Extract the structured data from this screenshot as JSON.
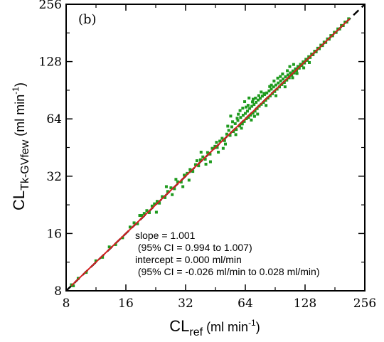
{
  "chart_data": {
    "type": "scatter",
    "panel_label": "(b)",
    "xlabel": {
      "main": "CL",
      "sub": "ref",
      "unit_pre": " (ml min",
      "sup": "-1",
      "unit_post": ")"
    },
    "ylabel": {
      "main": "CL",
      "sub": "Tk-GVfew",
      "unit_pre": "  (ml min",
      "sup": "-1",
      "unit_post": ")"
    },
    "axis_scale": "log2",
    "xlim": [
      8,
      256
    ],
    "ylim": [
      8,
      256
    ],
    "xticks": [
      8,
      16,
      32,
      64,
      128,
      256
    ],
    "yticks": [
      8,
      16,
      32,
      64,
      128,
      256
    ],
    "xtick_labels": [
      "8",
      "16",
      "32",
      "64",
      "128",
      "256"
    ],
    "ytick_labels": [
      "8",
      "16",
      "32",
      "64",
      "128",
      "256"
    ],
    "annotations": [
      "slope = 1.001",
      " (95% CI = 0.994 to 1.007)",
      "intercept = 0.000 ml/min",
      " (95% CI = -0.026 ml/min to 0.028 ml/min)"
    ],
    "identity_line": {
      "style": "dashed",
      "color": "#000000",
      "from": [
        8,
        8
      ],
      "to": [
        256,
        256
      ]
    },
    "fit_line": {
      "color": "#d42020",
      "slope": 1.001,
      "intercept": 0.0,
      "x_range": [
        8.5,
        215
      ]
    },
    "colors": {
      "points": "#1f9b1f",
      "fit": "#d42020",
      "identity": "#000000"
    },
    "series": [
      {
        "points": [
          [
            8.5,
            8.6
          ],
          [
            8.7,
            8.5
          ],
          [
            9.2,
            9.3
          ],
          [
            10.1,
            10.0
          ],
          [
            11.3,
            11.5
          ],
          [
            12.2,
            12.0
          ],
          [
            13.2,
            13.6
          ],
          [
            14.2,
            14.0
          ],
          [
            15.4,
            15.2
          ],
          [
            16.8,
            17.3
          ],
          [
            17.6,
            18.2
          ],
          [
            18.3,
            18.0
          ],
          [
            19.2,
            19.9
          ],
          [
            19.8,
            20.4
          ],
          [
            20.4,
            21.1
          ],
          [
            21.0,
            20.6
          ],
          [
            21.7,
            22.3
          ],
          [
            22.3,
            22.9
          ],
          [
            23.0,
            23.6
          ],
          [
            23.6,
            23.1
          ],
          [
            24.4,
            25.0
          ],
          [
            25.2,
            24.7
          ],
          [
            26.0,
            26.6
          ],
          [
            27.0,
            27.8
          ],
          [
            28.1,
            27.5
          ],
          [
            29.2,
            29.9
          ],
          [
            30.4,
            29.8
          ],
          [
            31.5,
            32.4
          ],
          [
            32.6,
            33.1
          ],
          [
            33.7,
            34.7
          ],
          [
            34.8,
            33.9
          ],
          [
            35.9,
            36.8
          ],
          [
            37.2,
            36.3
          ],
          [
            38.0,
            39.0
          ],
          [
            39.1,
            40.4
          ],
          [
            40.2,
            39.3
          ],
          [
            41.3,
            42.6
          ],
          [
            42.5,
            41.8
          ],
          [
            43.6,
            44.8
          ],
          [
            45.0,
            45.9
          ],
          [
            46.2,
            45.3
          ],
          [
            47.6,
            48.9
          ],
          [
            48.9,
            50.6
          ],
          [
            50.3,
            49.2
          ],
          [
            51.6,
            53.2
          ],
          [
            52.8,
            55.7
          ],
          [
            53.6,
            52.4
          ],
          [
            54.7,
            58.1
          ],
          [
            55.8,
            54.9
          ],
          [
            56.9,
            60.4
          ],
          [
            57.6,
            56.3
          ],
          [
            58.7,
            62.8
          ],
          [
            59.9,
            58.7
          ],
          [
            60.6,
            65.1
          ],
          [
            61.8,
            60.2
          ],
          [
            62.4,
            66.9
          ],
          [
            63.2,
            62.0
          ],
          [
            64.0,
            68.4
          ],
          [
            64.8,
            64.1
          ],
          [
            65.6,
            70.3
          ],
          [
            66.4,
            65.2
          ],
          [
            67.3,
            72.6
          ],
          [
            68.1,
            67.0
          ],
          [
            69.0,
            74.5
          ],
          [
            69.9,
            68.6
          ],
          [
            70.8,
            76.1
          ],
          [
            71.6,
            70.3
          ],
          [
            72.5,
            78.2
          ],
          [
            73.4,
            72.5
          ],
          [
            74.3,
            80.4
          ],
          [
            75.2,
            74.6
          ],
          [
            76.1,
            82.1
          ],
          [
            77.0,
            76.3
          ],
          [
            78.0,
            84.3
          ],
          [
            79.0,
            78.1
          ],
          [
            80.0,
            85.9
          ],
          [
            81.0,
            80.2
          ],
          [
            82.1,
            87.6
          ],
          [
            83.2,
            82.4
          ],
          [
            84.3,
            89.8
          ],
          [
            85.4,
            84.5
          ],
          [
            86.5,
            91.7
          ],
          [
            87.6,
            86.8
          ],
          [
            88.8,
            94.2
          ],
          [
            90.0,
            89.1
          ],
          [
            91.2,
            96.4
          ],
          [
            92.5,
            91.7
          ],
          [
            93.8,
            98.8
          ],
          [
            95.1,
            94.2
          ],
          [
            96.4,
            101.3
          ],
          [
            97.8,
            97.0
          ],
          [
            99.2,
            103.6
          ],
          [
            100.6,
            99.4
          ],
          [
            102.0,
            106.5
          ],
          [
            103.5,
            102.3
          ],
          [
            105.0,
            108.9
          ],
          [
            106.5,
            105.2
          ],
          [
            108.0,
            111.6
          ],
          [
            109.6,
            108.7
          ],
          [
            111.2,
            114.3
          ],
          [
            112.8,
            111.5
          ],
          [
            114.4,
            117.2
          ],
          [
            116.0,
            114.8
          ],
          [
            117.8,
            120.6
          ],
          [
            119.6,
            118.2
          ],
          [
            121.4,
            123.8
          ],
          [
            123.3,
            122.0
          ],
          [
            125.2,
            127.6
          ],
          [
            127.2,
            125.8
          ],
          [
            129.3,
            131.6
          ],
          [
            131.4,
            129.9
          ],
          [
            133.6,
            135.8
          ],
          [
            135.8,
            134.5
          ],
          [
            138.1,
            140.2
          ],
          [
            140.5,
            139.0
          ],
          [
            143.0,
            145.1
          ],
          [
            145.6,
            144.0
          ],
          [
            148.3,
            150.4
          ],
          [
            151.0,
            149.6
          ],
          [
            153.8,
            156.1
          ],
          [
            156.7,
            155.3
          ],
          [
            159.7,
            162.0
          ],
          [
            162.8,
            161.3
          ],
          [
            166.0,
            168.4
          ],
          [
            169.3,
            167.9
          ],
          [
            172.7,
            175.2
          ],
          [
            176.2,
            174.8
          ],
          [
            179.8,
            182.4
          ],
          [
            183.5,
            182.0
          ],
          [
            187.3,
            190.0
          ],
          [
            191.2,
            189.8
          ],
          [
            195.2,
            198.1
          ],
          [
            199.3,
            197.8
          ],
          [
            203.5,
            206.4
          ],
          [
            207.8,
            206.3
          ],
          [
            212.2,
            214.8
          ],
          [
            40.5,
            37.0
          ],
          [
            45.8,
            48.2
          ],
          [
            50.8,
            47.2
          ],
          [
            55.2,
            61.8
          ],
          [
            58.2,
            64.5
          ],
          [
            60.2,
            70.8
          ],
          [
            62.1,
            72.9
          ],
          [
            64.6,
            73.8
          ],
          [
            66.1,
            75.4
          ],
          [
            69.5,
            78.6
          ],
          [
            52.2,
            58.6
          ],
          [
            49.5,
            44.8
          ],
          [
            57.3,
            52.9
          ],
          [
            70.1,
            81.2
          ],
          [
            74.8,
            84.8
          ],
          [
            76.9,
            88.6
          ],
          [
            79.6,
            87.1
          ],
          [
            84.9,
            94.6
          ],
          [
            89.3,
            101.2
          ],
          [
            93.2,
            104.8
          ],
          [
            98.6,
            110.2
          ],
          [
            104.2,
            114.6
          ],
          [
            110.8,
            105.2
          ],
          [
            66.8,
            82.4
          ],
          [
            68.6,
            63.1
          ],
          [
            71.2,
            66.0
          ],
          [
            61.2,
            57.2
          ],
          [
            33.3,
            30.5
          ],
          [
            28.6,
            30.8
          ],
          [
            22.8,
            20.7
          ],
          [
            25.6,
            28.2
          ],
          [
            18.8,
            19.9
          ],
          [
            36.5,
            38.6
          ],
          [
            27.4,
            25.6
          ],
          [
            46.8,
            42.8
          ],
          [
            112.1,
            123.6
          ],
          [
            116.6,
            110.9
          ],
          [
            126.0,
            118.6
          ],
          [
            134.5,
            126.5
          ],
          [
            54.0,
            66.2
          ],
          [
            59.0,
            67.7
          ],
          [
            63.5,
            78.8
          ],
          [
            72.0,
            82.3
          ],
          [
            86.6,
            96.3
          ],
          [
            91.3,
            84.7
          ],
          [
            96.1,
            106.8
          ],
          [
            101.5,
            94.3
          ],
          [
            107.2,
            120.5
          ],
          [
            73.8,
            67.8
          ],
          [
            81.4,
            75.3
          ],
          [
            42.7,
            38.1
          ],
          [
            38.3,
            42.8
          ],
          [
            31.0,
            28.2
          ]
        ]
      }
    ]
  }
}
